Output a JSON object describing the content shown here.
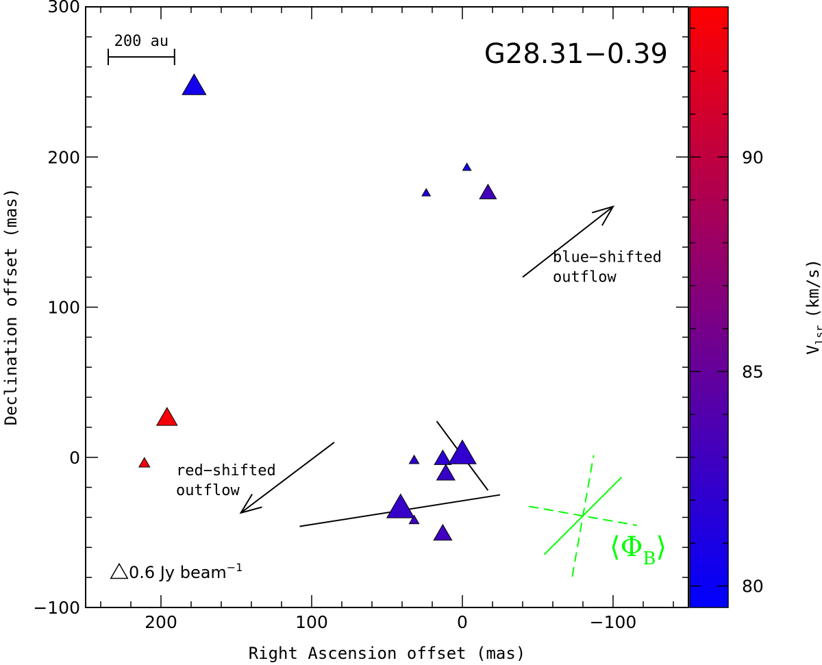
{
  "chart_data": {
    "type": "scatter",
    "title": "G28.31−0.39",
    "xlabel": "Right Ascension offset (mas)",
    "ylabel": "Declination offset (mas)",
    "xlim": [
      250,
      -150
    ],
    "ylim": [
      -100,
      300
    ],
    "x_ticks": [
      200,
      100,
      0,
      -100
    ],
    "x_tick_labels": [
      "200",
      "100",
      "0",
      "−100"
    ],
    "y_ticks": [
      -100,
      0,
      100,
      200,
      300
    ],
    "y_tick_labels": [
      "−100",
      "0",
      "100",
      "200",
      "300"
    ],
    "scale_bar": {
      "label": "200 au",
      "x_start": 235,
      "x_end": 191,
      "y": 268
    },
    "flux_legend": {
      "label": "0.6 Jy beam",
      "superscript": "−1",
      "flux": 0.6
    },
    "colorbar": {
      "label": "V",
      "label_sub": "lsr",
      "label_unit": "(km/s)",
      "min": 79.5,
      "max": 93.5,
      "ticks": [
        80,
        85,
        90
      ],
      "tick_labels": [
        "80",
        "85",
        "90"
      ],
      "color_low": "#0000ff",
      "color_high": "#ff0000"
    },
    "points": [
      {
        "x": 178,
        "y": 247,
        "v": 80.6,
        "flux": 1.2
      },
      {
        "x": -3,
        "y": 193,
        "v": 80.8,
        "flux": 0.15
      },
      {
        "x": 24,
        "y": 176,
        "v": 81.2,
        "flux": 0.15
      },
      {
        "x": -17,
        "y": 176,
        "v": 83.2,
        "flux": 0.6
      },
      {
        "x": 196,
        "y": 26,
        "v": 93.0,
        "flux": 0.9
      },
      {
        "x": 211,
        "y": -4,
        "v": 92.8,
        "flux": 0.25
      },
      {
        "x": 32,
        "y": -2,
        "v": 82.2,
        "flux": 0.2
      },
      {
        "x": 13,
        "y": -1,
        "v": 82.0,
        "flux": 0.6
      },
      {
        "x": 0,
        "y": 2,
        "v": 82.2,
        "flux": 1.6
      },
      {
        "x": 11,
        "y": -11,
        "v": 82.6,
        "flux": 0.7
      },
      {
        "x": 41,
        "y": -34,
        "v": 82.5,
        "flux": 1.6
      },
      {
        "x": 32,
        "y": -42,
        "v": 82.8,
        "flux": 0.2
      },
      {
        "x": 13,
        "y": -51,
        "v": 83.0,
        "flux": 0.7
      }
    ],
    "vectors": [
      {
        "x1": 17,
        "y1": 24,
        "x2": -17,
        "y2": -22
      },
      {
        "x1": 108,
        "y1": -46,
        "x2": -25,
        "y2": -25
      }
    ],
    "outflows": [
      {
        "name": "blue-shifted",
        "lines": [
          "blue−shifted",
          "outflow"
        ],
        "from": [
          -40,
          120
        ],
        "to": [
          -100,
          167
        ],
        "text_at": [
          -60,
          130
        ]
      },
      {
        "name": "red-shifted",
        "lines": [
          "red−shifted",
          "outflow"
        ],
        "from": [
          85,
          10
        ],
        "to": [
          147,
          -37
        ],
        "text_at": [
          190,
          -12
        ]
      }
    ],
    "mean_field": {
      "label": "Φ",
      "label_sub": "B",
      "color": "#00ff00",
      "center": [
        -80,
        -39
      ],
      "solid_angle_deg": 45,
      "dashed_angle_deg": 80
    }
  }
}
